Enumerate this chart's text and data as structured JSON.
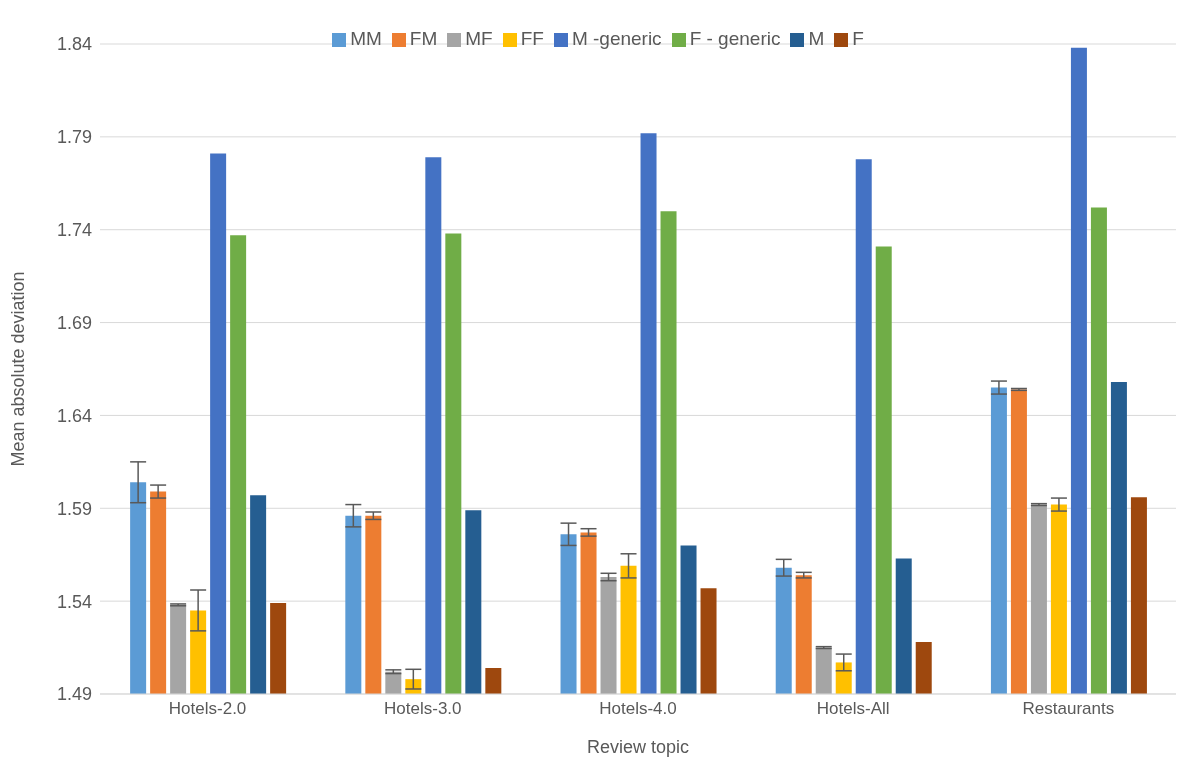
{
  "chart_data": {
    "type": "bar",
    "xlabel": "Review topic",
    "ylabel": "Mean absolute deviation",
    "categories": [
      "Hotels-2.0",
      "Hotels-3.0",
      "Hotels-4.0",
      "Hotels-All",
      "Restaurants"
    ],
    "series": [
      {
        "name": "MM",
        "color": "#5b9bd5",
        "values": [
          1.604,
          1.586,
          1.576,
          1.558,
          1.655
        ],
        "errors": [
          0.011,
          0.006,
          0.006,
          0.0045,
          0.0035
        ]
      },
      {
        "name": "FM",
        "color": "#ed7d31",
        "values": [
          1.599,
          1.586,
          1.577,
          1.554,
          1.654
        ],
        "errors": [
          0.0035,
          0.002,
          0.002,
          0.0015,
          0.0005
        ]
      },
      {
        "name": "MF",
        "color": "#a5a5a5",
        "values": [
          1.538,
          1.502,
          1.553,
          1.515,
          1.592
        ],
        "errors": [
          0.0005,
          0.001,
          0.002,
          0.0005,
          0.0005
        ]
      },
      {
        "name": "FF",
        "color": "#ffc000",
        "values": [
          1.535,
          1.498,
          1.559,
          1.507,
          1.592
        ],
        "errors": [
          0.011,
          0.0053,
          0.0065,
          0.0045,
          0.0035
        ]
      },
      {
        "name": "M -generic",
        "color": "#4472c4",
        "values": [
          1.781,
          1.779,
          1.792,
          1.778,
          1.838
        ]
      },
      {
        "name": "F - generic",
        "color": "#70ad47",
        "values": [
          1.737,
          1.738,
          1.75,
          1.731,
          1.752
        ]
      },
      {
        "name": "M",
        "color": "#255e91",
        "values": [
          1.597,
          1.589,
          1.57,
          1.563,
          1.658
        ]
      },
      {
        "name": "F",
        "color": "#9e480e",
        "values": [
          1.539,
          1.504,
          1.547,
          1.518,
          1.596
        ]
      }
    ],
    "ylim": [
      1.49,
      1.84
    ],
    "yticks": [
      1.49,
      1.54,
      1.59,
      1.64,
      1.69,
      1.74,
      1.79,
      1.84
    ],
    "grid": "y",
    "legend": "top"
  }
}
